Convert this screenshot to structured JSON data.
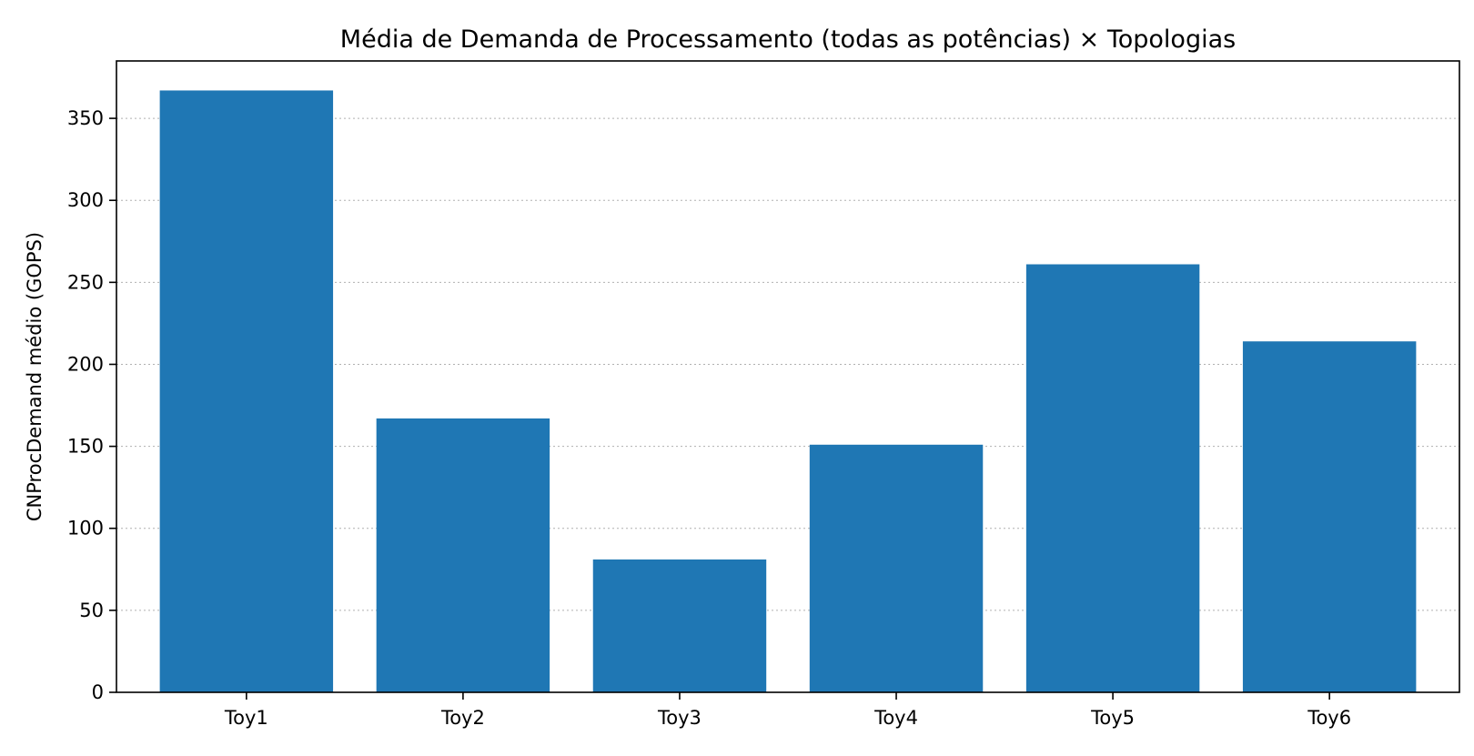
{
  "chart_data": {
    "type": "bar",
    "title": "Média de Demanda de Processamento (todas as potências) × Topologias",
    "xlabel": "",
    "ylabel": "CNProcDemand médio (GOPS)",
    "categories": [
      "Toy1",
      "Toy2",
      "Toy3",
      "Toy4",
      "Toy5",
      "Toy6"
    ],
    "values": [
      367,
      167,
      81,
      151,
      261,
      214
    ],
    "ylim": [
      0,
      385
    ],
    "yticks": [
      0,
      50,
      100,
      150,
      200,
      250,
      300,
      350
    ],
    "grid": "y-dotted",
    "legend": "none",
    "bar_color": "#1f77b4"
  }
}
